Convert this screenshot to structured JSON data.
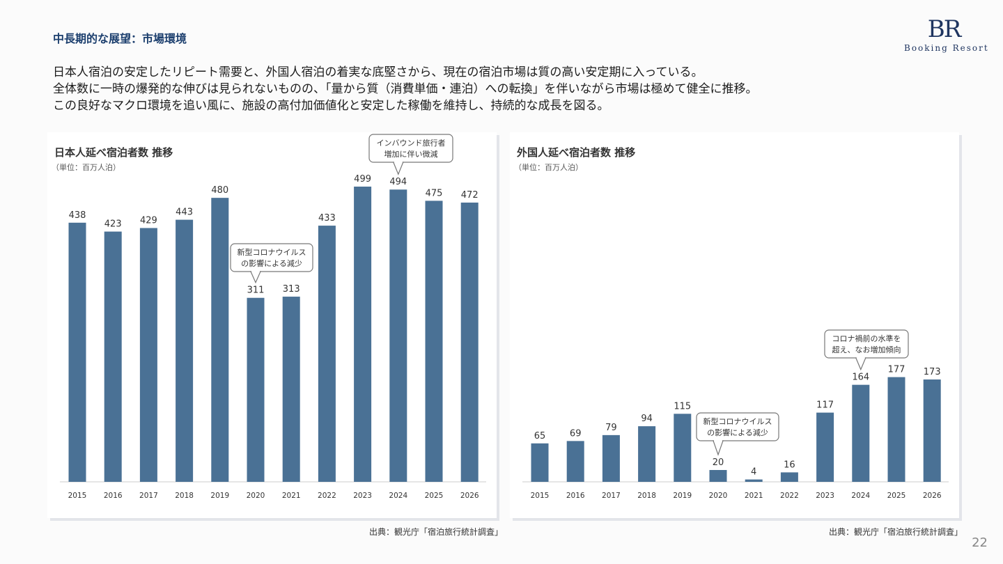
{
  "header": {
    "title": "中長期的な展望：市場環境",
    "logo_mark": "BR",
    "logo_text": "Booking Resort"
  },
  "lead": {
    "lines": [
      "日本人宿泊の安定したリピート需要と、外国人宿泊の着実な底堅さから、現在の宿泊市場は質の高い安定期に入っている。",
      "全体数に一時の爆発的な伸びは見られないものの、「量から質（消費単価・連泊）への転換」を伴いながら市場は極めて健全に推移。",
      "この良好なマクロ環境を追い風に、施設の高付加価値化と安定した稼働を維持し、持続的な成長を図る。"
    ]
  },
  "chart_data": [
    {
      "type": "bar",
      "title": "日本人延べ宿泊者数 推移",
      "subtitle": "（単位：百万人泊）",
      "categories": [
        "2015",
        "2016",
        "2017",
        "2018",
        "2019",
        "2020",
        "2021",
        "2022",
        "2023",
        "2024",
        "2025",
        "2026"
      ],
      "values": [
        438,
        423,
        429,
        443,
        480,
        311,
        313,
        433,
        499,
        494,
        475,
        472
      ],
      "ylim": [
        0,
        499
      ],
      "grid": false,
      "color": "#4a7195",
      "annotations": [
        {
          "lines": [
            "新型コロナウイルス",
            "の影響による減少"
          ],
          "target": "2020"
        },
        {
          "lines": [
            "インバウンド旅行者",
            "増加に伴い微減"
          ],
          "target": "2024"
        }
      ],
      "source": "出典：観光庁「宿泊旅行統計調査」"
    },
    {
      "type": "bar",
      "title": "外国人延べ宿泊者数 推移",
      "subtitle": "（単位：百万人泊）",
      "categories": [
        "2015",
        "2016",
        "2017",
        "2018",
        "2019",
        "2020",
        "2021",
        "2022",
        "2023",
        "2024",
        "2025",
        "2026"
      ],
      "values": [
        65,
        69,
        79,
        94,
        115,
        20,
        4,
        16,
        117,
        164,
        177,
        173
      ],
      "ylim": [
        0,
        499
      ],
      "grid": false,
      "color": "#4a7195",
      "annotations": [
        {
          "lines": [
            "新型コロナウイルス",
            "の影響による減少"
          ],
          "target": "2020"
        },
        {
          "lines": [
            "コロナ禍前の水準を",
            "超え、なお増加傾向"
          ],
          "target": "2024"
        }
      ],
      "source": "出典：観光庁「宿泊旅行統計調査」"
    }
  ],
  "page_number": "22"
}
